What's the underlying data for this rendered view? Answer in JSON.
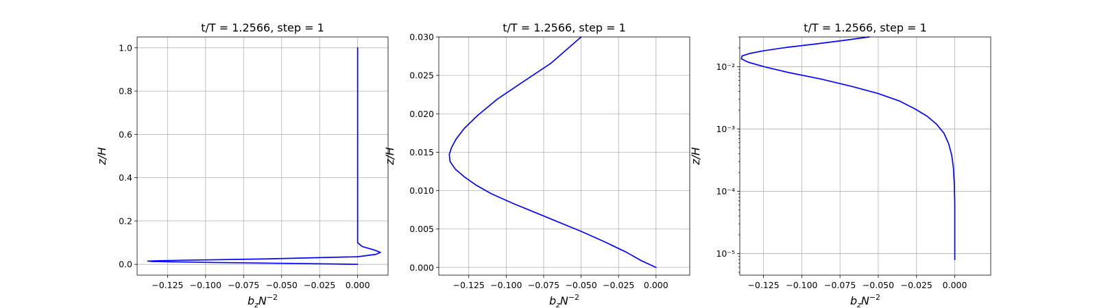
{
  "figure": {
    "background": "#ffffff",
    "line_color": "#0000ff",
    "grid_color": "#b0b0b0"
  },
  "chart_data": [
    {
      "type": "line",
      "title": "t/T = 1.2566, step = 1",
      "xlabel": "b_z N^{-2}",
      "ylabel": "z/H",
      "xlim": [
        -0.145,
        0.02
      ],
      "ylim": [
        -0.05,
        1.05
      ],
      "yscale": "linear",
      "grid": true,
      "xticks": [
        -0.125,
        -0.1,
        -0.075,
        -0.05,
        -0.025,
        0.0
      ],
      "xtick_labels": [
        "−0.125",
        "−0.100",
        "−0.075",
        "−0.050",
        "−0.025",
        "0.000"
      ],
      "yticks": [
        0.0,
        0.2,
        0.4,
        0.6,
        0.8,
        1.0
      ],
      "ytick_labels": [
        "0.0",
        "0.2",
        "0.4",
        "0.6",
        "0.8",
        "1.0"
      ],
      "series": [
        {
          "x": [
            0.0,
            -0.04,
            -0.1,
            -0.135,
            -0.138,
            -0.13,
            -0.06,
            0.0,
            0.012,
            0.015,
            0.011,
            0.003,
            0.0,
            0.0,
            0.0,
            0.0
          ],
          "y": [
            0.0,
            0.004,
            0.009,
            0.013,
            0.015,
            0.017,
            0.025,
            0.035,
            0.046,
            0.055,
            0.066,
            0.082,
            0.1,
            0.145,
            0.5,
            1.0
          ]
        }
      ]
    },
    {
      "type": "line",
      "title": "t/T = 1.2566, step = 1",
      "xlabel": "b_z N^{-2}",
      "ylabel": "z/H",
      "xlim": [
        -0.145,
        0.0225
      ],
      "ylim": [
        -0.001,
        0.03
      ],
      "yscale": "linear",
      "grid": true,
      "xticks": [
        -0.125,
        -0.1,
        -0.075,
        -0.05,
        -0.025,
        0.0
      ],
      "xtick_labels": [
        "−0.125",
        "−0.100",
        "−0.075",
        "−0.050",
        "−0.025",
        "0.000"
      ],
      "yticks": [
        0.0,
        0.005,
        0.01,
        0.015,
        0.02,
        0.025,
        0.03
      ],
      "ytick_labels": [
        "0.000",
        "0.005",
        "0.010",
        "0.015",
        "0.020",
        "0.025",
        "0.030"
      ],
      "series": [
        {
          "x": [
            0.0,
            -0.01,
            -0.02,
            -0.035,
            -0.05,
            -0.065,
            -0.08,
            -0.095,
            -0.11,
            -0.12,
            -0.128,
            -0.134,
            -0.1375,
            -0.138,
            -0.1365,
            -0.1335,
            -0.128,
            -0.119,
            -0.106,
            -0.09,
            -0.07,
            -0.05
          ],
          "y": [
            0.0,
            0.0009,
            0.002,
            0.0034,
            0.0047,
            0.0059,
            0.0071,
            0.0083,
            0.0096,
            0.0107,
            0.0118,
            0.0128,
            0.0138,
            0.0147,
            0.0156,
            0.0167,
            0.0181,
            0.0198,
            0.0219,
            0.024,
            0.0266,
            0.03
          ]
        }
      ]
    },
    {
      "type": "line",
      "title": "t/T = 1.2566, step = 1",
      "xlabel": "b_z N^{-2}",
      "ylabel": "z/H",
      "xlim": [
        -0.1405,
        0.0235
      ],
      "ylim": [
        4.5e-06,
        0.03
      ],
      "yscale": "log",
      "grid": true,
      "xticks": [
        -0.125,
        -0.1,
        -0.075,
        -0.05,
        -0.025,
        0.0
      ],
      "xtick_labels": [
        "−0.125",
        "−0.100",
        "−0.075",
        "−0.050",
        "−0.025",
        "0.000"
      ],
      "yticks": [
        1e-05,
        0.0001,
        0.001,
        0.01
      ],
      "ytick_labels": [
        "10⁻⁵",
        "10⁻⁴",
        "10⁻³",
        "10⁻²"
      ],
      "series": [
        {
          "x": [
            0.0,
            0.0,
            -0.0003,
            -0.0009,
            -0.002,
            -0.004,
            -0.007,
            -0.012,
            -0.018,
            -0.026,
            -0.036,
            -0.05,
            -0.067,
            -0.087,
            -0.108,
            -0.124,
            -0.135,
            -0.1395,
            -0.139,
            -0.134,
            -0.125,
            -0.11,
            -0.09,
            -0.072,
            -0.056
          ],
          "y": [
            8e-06,
            6.3e-05,
            0.00013,
            0.00024,
            0.00038,
            0.00058,
            0.00085,
            0.0012,
            0.0016,
            0.0021,
            0.0028,
            0.0037,
            0.0048,
            0.0063,
            0.008,
            0.0099,
            0.0118,
            0.0134,
            0.0149,
            0.0163,
            0.018,
            0.0204,
            0.0233,
            0.0265,
            0.03
          ]
        }
      ]
    }
  ]
}
